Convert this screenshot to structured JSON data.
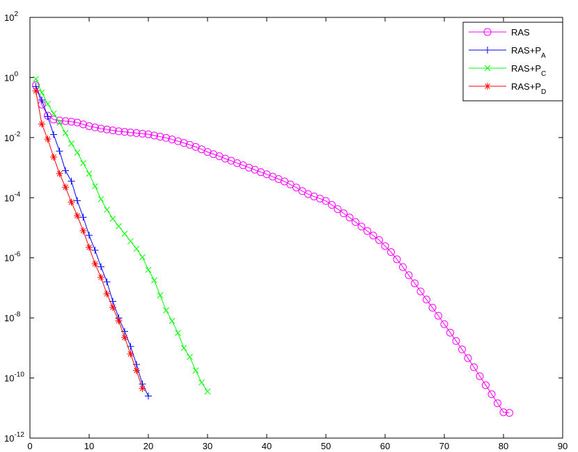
{
  "chart_data": {
    "type": "line",
    "yscale": "log",
    "xlim": [
      0,
      90
    ],
    "ylim_exponent": [
      -12,
      2
    ],
    "x_ticks": [
      "0",
      "10",
      "20",
      "30",
      "40",
      "50",
      "60",
      "70",
      "80",
      "90"
    ],
    "y_tick_exponents": [
      "2",
      "0",
      "-2",
      "-4",
      "-6",
      "-8",
      "-10",
      "-12"
    ],
    "y_tick_base": "10",
    "grid": false,
    "legend_position": "top-right",
    "series": [
      {
        "name": "RAS",
        "color": "#ff00ff",
        "marker": "circle",
        "x_start": 1,
        "log10_values": [
          -0.26,
          -0.9,
          -1.27,
          -1.4,
          -1.43,
          -1.45,
          -1.47,
          -1.5,
          -1.56,
          -1.62,
          -1.66,
          -1.7,
          -1.73,
          -1.76,
          -1.79,
          -1.81,
          -1.83,
          -1.85,
          -1.87,
          -1.89,
          -1.93,
          -1.97,
          -2.01,
          -2.06,
          -2.12,
          -2.18,
          -2.24,
          -2.31,
          -2.39,
          -2.48,
          -2.55,
          -2.62,
          -2.7,
          -2.77,
          -2.85,
          -2.92,
          -3.0,
          -3.07,
          -3.15,
          -3.22,
          -3.3,
          -3.38,
          -3.46,
          -3.56,
          -3.66,
          -3.78,
          -3.88,
          -3.96,
          -4.03,
          -4.11,
          -4.24,
          -4.38,
          -4.52,
          -4.66,
          -4.81,
          -4.96,
          -5.11,
          -5.26,
          -5.41,
          -5.61,
          -5.81,
          -6.05,
          -6.31,
          -6.58,
          -6.85,
          -7.12,
          -7.39,
          -7.66,
          -7.93,
          -8.21,
          -8.49,
          -8.77,
          -9.05,
          -9.34,
          -9.64,
          -9.94,
          -10.24,
          -10.54,
          -10.84,
          -11.14,
          -11.16
        ]
      },
      {
        "name": "RAS+P_A",
        "color": "#0000ff",
        "marker": "plus",
        "x_start": 1,
        "log10_values": [
          -0.3,
          -0.75,
          -1.3,
          -1.9,
          -2.45,
          -3.1,
          -3.45,
          -4.1,
          -4.65,
          -5.25,
          -5.75,
          -6.3,
          -6.8,
          -7.45,
          -8.0,
          -8.45,
          -8.95,
          -9.55,
          -10.2,
          -10.6
        ]
      },
      {
        "name": "RAS+P_C",
        "color": "#00ff00",
        "marker": "x",
        "x_start": 1,
        "log10_values": [
          -0.05,
          -0.5,
          -0.88,
          -1.2,
          -1.5,
          -1.85,
          -2.2,
          -2.5,
          -2.85,
          -3.2,
          -3.62,
          -4.05,
          -4.4,
          -4.7,
          -4.95,
          -5.2,
          -5.45,
          -5.7,
          -5.98,
          -6.4,
          -6.75,
          -7.25,
          -7.75,
          -8.1,
          -8.5,
          -9.0,
          -9.3,
          -9.75,
          -10.15,
          -10.45
        ]
      },
      {
        "name": "RAS+P_D",
        "color": "#ff0000",
        "marker": "star",
        "x_start": 1,
        "log10_values": [
          -0.45,
          -1.55,
          -2.05,
          -2.65,
          -3.2,
          -3.65,
          -4.15,
          -4.6,
          -5.1,
          -5.65,
          -6.2,
          -6.65,
          -7.2,
          -7.65,
          -8.1,
          -8.65,
          -9.2,
          -9.75,
          -10.35
        ]
      }
    ],
    "legend": [
      {
        "base": "RAS",
        "sub": ""
      },
      {
        "base": "RAS+P",
        "sub": "A"
      },
      {
        "base": "RAS+P",
        "sub": "C"
      },
      {
        "base": "RAS+P",
        "sub": "D"
      }
    ]
  }
}
